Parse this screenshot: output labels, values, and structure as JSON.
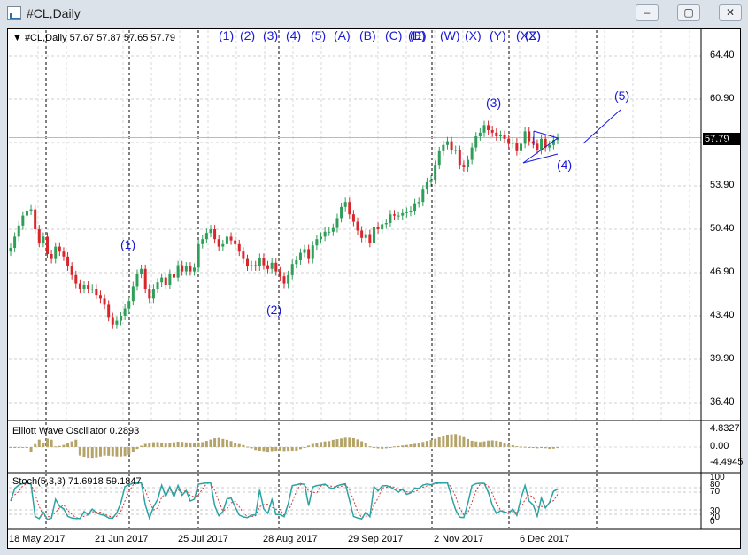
{
  "window": {
    "title": "#CL,Daily",
    "min_glyph": "–",
    "max_glyph": "▢",
    "close_glyph": "✕"
  },
  "main_chart": {
    "header": "▼ #CL,Daily  57.67 57.87 57.65 57.79",
    "current_price": "57.79",
    "price_ticks": [
      "64.40",
      "60.90",
      "57.40",
      "53.90",
      "50.40",
      "46.90",
      "43.40",
      "39.90",
      "36.40"
    ],
    "top_wave_labels": [
      "(1)",
      "(2)",
      "(3)",
      "(4)",
      "(5)",
      "(A)",
      "(B)",
      "(C)",
      "(D)",
      "(E)",
      "(W)",
      "(X)",
      "(Y)",
      "(XX)",
      "(Z)"
    ],
    "wave_labels": [
      "(1)",
      "(2)",
      "(3)",
      "(4)",
      "(5)"
    ],
    "colors": {
      "bull": "#2f9e58",
      "bear": "#d8262b",
      "wave_text": "#1a1ad6",
      "grid": "#c8c8c8"
    }
  },
  "elliott": {
    "label": "Elliott Wave Oscillator 0.2893",
    "ticks": [
      "4.8327",
      "0.00",
      "-4.4945"
    ],
    "bar_color": "#b5a46a"
  },
  "stoch": {
    "label": "Stoch(5,3,3) 71.6918 59.1847",
    "ticks": [
      "100",
      "80",
      "70",
      "30",
      "20",
      "0"
    ],
    "main_color": "#2aa3a3",
    "signal_color": "#d43a3a"
  },
  "x_axis": {
    "dates": [
      "18 May 2017",
      "21 Jun 2017",
      "25 Jul 2017",
      "28 Aug 2017",
      "29 Sep 2017",
      "2 Nov 2017",
      "6 Dec 2017"
    ]
  },
  "chart_data": {
    "type": "candlestick",
    "series": [
      {
        "name": "#CL,Daily",
        "close": [
          48.9,
          49.8,
          50.7,
          51.5,
          51.9,
          52.0,
          50.4,
          49.3,
          49.8,
          48.4,
          48.0,
          49.0,
          48.6,
          48.2,
          47.4,
          46.7,
          46.0,
          45.6,
          45.9,
          45.6,
          45.6,
          45.1,
          44.8,
          44.3,
          43.3,
          42.7,
          43.0,
          43.4,
          44.0,
          44.6,
          45.8,
          46.8,
          47.2,
          45.6,
          44.8,
          45.6,
          46.1,
          46.5,
          45.9,
          46.8,
          46.5,
          47.5,
          47.0,
          47.4,
          47.0,
          47.3,
          49.2,
          49.6,
          50.1,
          50.4,
          49.6,
          49.0,
          49.2,
          49.8,
          49.5,
          49.2,
          48.6,
          48.0,
          47.4,
          47.5,
          47.4,
          48.1,
          47.5,
          47.2,
          47.7,
          47.0,
          46.6,
          46.0,
          46.7,
          47.6,
          47.9,
          48.5,
          48.8,
          48.0,
          49.1,
          49.6,
          49.8,
          50.2,
          50.2,
          50.5,
          51.3,
          52.2,
          52.6,
          51.6,
          51.0,
          50.3,
          49.7,
          50.0,
          49.3,
          50.6,
          50.4,
          50.8,
          50.9,
          51.6,
          51.5,
          51.5,
          51.7,
          51.8,
          51.9,
          52.5,
          52.6,
          53.6,
          54.2,
          54.4,
          55.6,
          56.7,
          57.2,
          57.5,
          56.8,
          56.8,
          55.6,
          55.4,
          56.0,
          57.0,
          57.9,
          58.2,
          58.8,
          58.4,
          58.2,
          57.9,
          58.0,
          57.7,
          57.3,
          57.4,
          56.7,
          57.3,
          58.3,
          57.5,
          57.3,
          56.8,
          57.7,
          57.0,
          57.2,
          57.6,
          57.8
        ]
      }
    ],
    "indicators": [
      "Elliott Wave Oscillator",
      "Stoch(5,3,3)"
    ]
  }
}
